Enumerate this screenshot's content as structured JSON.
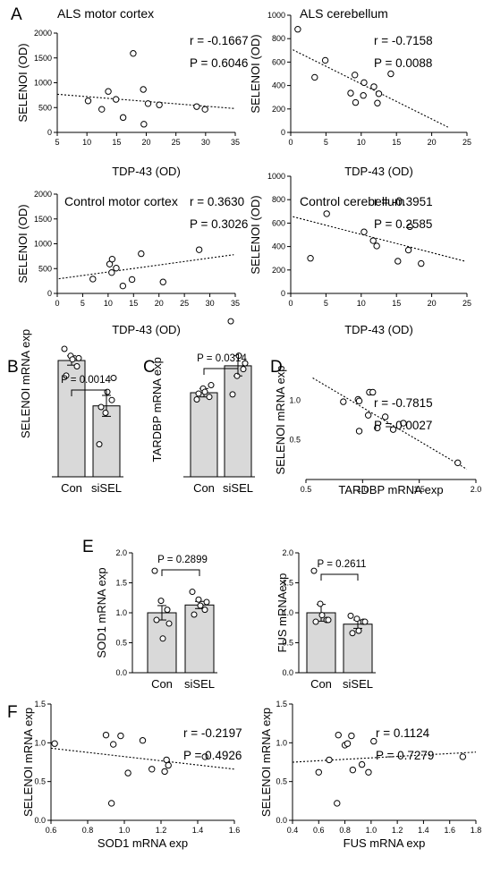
{
  "panel_letters": {
    "a": "A",
    "b": "B",
    "c": "C",
    "d": "D",
    "e": "E",
    "f": "F"
  },
  "chart_data": [
    {
      "id": "als_motor",
      "type": "scatter",
      "title": "ALS motor cortex",
      "xlabel": "TDP-43 (OD)",
      "ylabel": "SELENOI (OD)",
      "xlim": [
        5,
        35
      ],
      "ylim": [
        0,
        2000
      ],
      "xticks": [
        5,
        10,
        15,
        20,
        25,
        30,
        35
      ],
      "yticks": [
        0,
        500,
        1000,
        1500,
        2000
      ],
      "r_label": "r = -0.1667",
      "p_label": "P = 0.6046",
      "points": [
        [
          10.2,
          635
        ],
        [
          12.5,
          465
        ],
        [
          13.6,
          825
        ],
        [
          14.9,
          665
        ],
        [
          16.1,
          300
        ],
        [
          17.8,
          1590
        ],
        [
          19.5,
          865
        ],
        [
          19.6,
          165
        ],
        [
          20.3,
          580
        ],
        [
          22.2,
          555
        ],
        [
          28.5,
          520
        ],
        [
          29.9,
          465
        ]
      ],
      "fit": [
        [
          5,
          768
        ],
        [
          35,
          480
        ]
      ]
    },
    {
      "id": "als_cereb",
      "type": "scatter",
      "title": "ALS cerebellum",
      "xlabel": "TDP-43 (OD)",
      "ylabel": "SELENOI (OD)",
      "xlim": [
        0,
        25
      ],
      "ylim": [
        0,
        1000
      ],
      "xticks": [
        0,
        5,
        10,
        15,
        20,
        25
      ],
      "yticks": [
        0,
        200,
        400,
        600,
        800,
        1000
      ],
      "r_label": "r = -0.7158",
      "p_label": "P = 0.0088",
      "points": [
        [
          1.0,
          880
        ],
        [
          3.4,
          470
        ],
        [
          4.9,
          615
        ],
        [
          8.5,
          335
        ],
        [
          9.1,
          490
        ],
        [
          9.2,
          255
        ],
        [
          10.3,
          315
        ],
        [
          10.4,
          425
        ],
        [
          11.8,
          390
        ],
        [
          12.3,
          250
        ],
        [
          12.5,
          330
        ],
        [
          14.2,
          500
        ]
      ],
      "fit": [
        [
          0.3,
          705
        ],
        [
          22.3,
          45
        ]
      ]
    },
    {
      "id": "ctrl_motor",
      "type": "scatter",
      "title": "Control motor cortex",
      "xlabel": "TDP-43 (OD)",
      "ylabel": "SELENOI (OD)",
      "xlim": [
        0,
        35
      ],
      "ylim": [
        0,
        2000
      ],
      "xticks": [
        0,
        5,
        10,
        15,
        20,
        25,
        30,
        35
      ],
      "yticks": [
        0,
        500,
        1000,
        1500,
        2000
      ],
      "r_label": "r = 0.3630",
      "p_label": "P = 0.3026",
      "points": [
        [
          7.0,
          290
        ],
        [
          10.3,
          590
        ],
        [
          10.7,
          420
        ],
        [
          10.8,
          690
        ],
        [
          11.6,
          510
        ],
        [
          12.9,
          150
        ],
        [
          14.7,
          280
        ],
        [
          16.5,
          800
        ],
        [
          20.8,
          230
        ],
        [
          27.9,
          880
        ]
      ],
      "fit": [
        [
          0.3,
          295
        ],
        [
          34.7,
          780
        ]
      ]
    },
    {
      "id": "ctrl_cereb",
      "type": "scatter",
      "title": "Control cerebellum",
      "xlabel": "TDP-43 (OD)",
      "ylabel": "SELENOI (OD)",
      "xlim": [
        0,
        25
      ],
      "ylim": [
        0,
        1000
      ],
      "xticks": [
        0,
        5,
        10,
        15,
        20,
        25
      ],
      "yticks": [
        0,
        200,
        400,
        600,
        800,
        1000
      ],
      "r_label": "r = -0.3951",
      "p_label": "P = 0.2585",
      "points": [
        [
          2.8,
          300
        ],
        [
          5.1,
          680
        ],
        [
          10.4,
          525
        ],
        [
          11.7,
          450
        ],
        [
          12.2,
          405
        ],
        [
          15.2,
          275
        ],
        [
          16.7,
          370
        ],
        [
          16.9,
          570
        ],
        [
          18.5,
          255
        ]
      ],
      "fit": [
        [
          0.3,
          655
        ],
        [
          24.7,
          275
        ]
      ]
    },
    {
      "id": "selenoi_bar",
      "type": "bar",
      "xlabel": "",
      "ylabel": "SELENOI mRNA exp",
      "categories": [
        "Con",
        "siSEL"
      ],
      "values": [
        1.0,
        0.61
      ],
      "errors": [
        0.04,
        0.09
      ],
      "p_label": "P = 0.0014",
      "show_y_axis": false,
      "points": [
        [
          1.1,
          1.04,
          0.95,
          0.87,
          1.01,
          1.02
        ],
        [
          0.28,
          0.55,
          0.66,
          0.6,
          0.73,
          0.85
        ]
      ]
    },
    {
      "id": "tardbp_bar",
      "type": "bar",
      "xlabel": "",
      "ylabel": "TARDBP mRNA exp",
      "categories": [
        "Con",
        "siSEL"
      ],
      "values": [
        1.0,
        1.32
      ],
      "errors": [
        0.05,
        0.12
      ],
      "p_label": "P = 0.0314",
      "show_y_axis": false,
      "points": [
        [
          0.92,
          1.05,
          0.95,
          0.99,
          1.01,
          1.09
        ],
        [
          1.85,
          1.2,
          1.28,
          0.98,
          1.44,
          1.35
        ]
      ]
    },
    {
      "id": "selenoi_tardbp",
      "type": "scatter",
      "title": "",
      "xlabel": "TARDBP mRNA exp",
      "ylabel": "SELENOI mRNA exp",
      "xlim": [
        0.5,
        2.0
      ],
      "ylim": [
        0,
        1.5
      ],
      "xticks": [
        0.5,
        1.0,
        1.5,
        2.0
      ],
      "yticks": [
        0.5,
        1.0
      ],
      "show_y_axis": false,
      "r_label": "r = -0.7815",
      "p_label": "P = 0.0027",
      "points": [
        [
          0.83,
          0.98
        ],
        [
          0.96,
          1.01
        ],
        [
          0.97,
          0.99
        ],
        [
          0.97,
          0.61
        ],
        [
          1.05,
          0.81
        ],
        [
          1.06,
          1.1
        ],
        [
          1.09,
          1.1
        ],
        [
          1.13,
          0.65
        ],
        [
          1.2,
          0.79
        ],
        [
          1.27,
          0.63
        ],
        [
          1.36,
          0.71
        ],
        [
          1.84,
          0.21
        ]
      ],
      "fit": [
        [
          0.56,
          1.28
        ],
        [
          1.92,
          0.13
        ]
      ]
    },
    {
      "id": "sod1_bar",
      "type": "bar",
      "xlabel": "",
      "ylabel": "SOD1 mRNA exp",
      "categories": [
        "Con",
        "siSEL"
      ],
      "values": [
        1.0,
        1.13
      ],
      "errors": [
        0.12,
        0.06
      ],
      "p_label": "P = 0.2899",
      "ylim": [
        0,
        2.0
      ],
      "yticks": [
        0,
        0.5,
        1.0,
        1.5,
        2.0
      ],
      "points": [
        [
          1.7,
          1.2,
          1.05,
          0.88,
          0.57,
          0.82
        ],
        [
          1.35,
          1.22,
          1.05,
          0.97,
          1.12,
          1.18
        ]
      ]
    },
    {
      "id": "fus_bar",
      "type": "bar",
      "xlabel": "",
      "ylabel": "FUS mRNAexp",
      "categories": [
        "Con",
        "siSEL"
      ],
      "values": [
        1.0,
        0.81
      ],
      "errors": [
        0.14,
        0.07
      ],
      "p_label": "P = 0.2611",
      "ylim": [
        0,
        2.0
      ],
      "yticks": [
        0,
        0.5,
        1.0,
        1.5,
        2.0
      ],
      "points": [
        [
          1.7,
          1.15,
          0.88,
          0.85,
          0.96,
          0.88
        ],
        [
          0.95,
          0.9,
          0.85,
          0.66,
          0.7,
          0.85
        ]
      ]
    },
    {
      "id": "selenoi_sod1",
      "type": "scatter",
      "title": "",
      "xlabel": "SOD1 mRNA exp",
      "ylabel": "SELENOI mRNA exp",
      "xlim": [
        0.6,
        1.6
      ],
      "ylim": [
        0,
        1.5
      ],
      "xticks": [
        0.6,
        0.8,
        1.0,
        1.2,
        1.4,
        1.6
      ],
      "yticks": [
        0,
        0.5,
        1.0,
        1.5
      ],
      "r_label": "r = -0.2197",
      "p_label": "P = 0.4926",
      "points": [
        [
          0.62,
          0.99
        ],
        [
          0.9,
          1.1
        ],
        [
          0.93,
          0.22
        ],
        [
          0.94,
          0.98
        ],
        [
          0.98,
          1.09
        ],
        [
          1.02,
          0.61
        ],
        [
          1.1,
          1.03
        ],
        [
          1.15,
          0.66
        ],
        [
          1.22,
          0.63
        ],
        [
          1.23,
          0.78
        ],
        [
          1.24,
          0.71
        ],
        [
          1.44,
          0.82
        ]
      ],
      "fit": [
        [
          0.6,
          0.93
        ],
        [
          1.6,
          0.66
        ]
      ]
    },
    {
      "id": "selenoi_fus",
      "type": "scatter",
      "title": "",
      "xlabel": "FUS mRNA exp",
      "ylabel": "SELENOI mRNA exp",
      "xlim": [
        0.4,
        1.8
      ],
      "ylim": [
        0,
        1.5
      ],
      "xticks": [
        0.4,
        0.6,
        0.8,
        1.0,
        1.2,
        1.4,
        1.6,
        1.8
      ],
      "yticks": [
        0,
        0.5,
        1.0,
        1.5
      ],
      "r_label": "r = 0.1124",
      "p_label": "P = 0.7279",
      "points": [
        [
          0.6,
          0.62
        ],
        [
          0.68,
          0.78
        ],
        [
          0.74,
          0.22
        ],
        [
          0.75,
          1.1
        ],
        [
          0.8,
          0.97
        ],
        [
          0.82,
          0.99
        ],
        [
          0.85,
          1.09
        ],
        [
          0.86,
          0.65
        ],
        [
          0.93,
          0.72
        ],
        [
          0.98,
          0.62
        ],
        [
          1.02,
          1.02
        ],
        [
          1.7,
          0.82
        ]
      ],
      "fit": [
        [
          0.4,
          0.75
        ],
        [
          1.8,
          0.88
        ]
      ]
    }
  ]
}
